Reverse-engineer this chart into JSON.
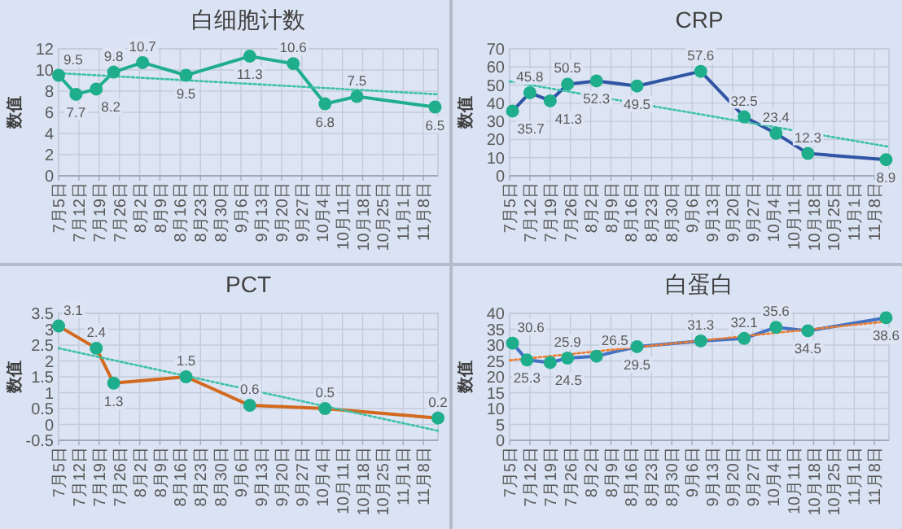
{
  "chart_data": [
    {
      "type": "line",
      "title": "白细胞计数",
      "ylabel": "数值",
      "grid": true,
      "marker": "circle",
      "line_style": "solid",
      "xlim": [
        "--07-05",
        "--11-13"
      ],
      "ylim": [
        0,
        12
      ],
      "yticks": [
        0,
        2,
        4,
        6,
        8,
        10,
        12
      ],
      "xticks": [
        {
          "value": "--07-05",
          "label": "7月5日"
        },
        {
          "value": "--07-12",
          "label": "7月12日"
        },
        {
          "value": "--07-19",
          "label": "7月19日"
        },
        {
          "value": "--07-26",
          "label": "7月26日"
        },
        {
          "value": "--08-02",
          "label": "8月2日"
        },
        {
          "value": "--08-09",
          "label": "8月9日"
        },
        {
          "value": "--08-16",
          "label": "8月16日"
        },
        {
          "value": "--08-23",
          "label": "8月23日"
        },
        {
          "value": "--08-30",
          "label": "8月30日"
        },
        {
          "value": "--09-06",
          "label": "9月6日"
        },
        {
          "value": "--09-13",
          "label": "9月13日"
        },
        {
          "value": "--09-20",
          "label": "9月20日"
        },
        {
          "value": "--09-27",
          "label": "9月27日"
        },
        {
          "value": "--10-04",
          "label": "10月4日"
        },
        {
          "value": "--10-11",
          "label": "10月11日"
        },
        {
          "value": "--10-18",
          "label": "10月18日"
        },
        {
          "value": "--10-25",
          "label": "10月25日"
        },
        {
          "value": "--11-01",
          "label": "11月1日"
        },
        {
          "value": "--11-08",
          "label": "11月8日"
        }
      ],
      "series": [
        {
          "color": "#1fae8c",
          "colors": [
            "#1fae8c",
            "#1fae8c",
            "#1fae8c",
            "#1fae8c",
            "#1fae8c",
            "#1fae8c",
            "#1fae8c",
            "#1fae8c",
            "#1fae8c",
            "#1fae8c",
            "#1fae8c"
          ],
          "x": [
            "--07-05",
            "--07-11",
            "--07-18",
            "--07-24",
            "--08-03",
            "--08-18",
            "--09-09",
            "--09-24",
            "--10-05",
            "--10-16",
            "--11-12"
          ],
          "values": [
            9.5,
            7.7,
            8.2,
            9.8,
            10.7,
            9.5,
            11.3,
            10.6,
            6.8,
            7.5,
            6.5
          ],
          "value_labels": [
            "9.5",
            "7.7",
            "8.2",
            "9.8",
            "10.7",
            "9.5",
            "11.3",
            "10.6",
            "6.8",
            "7.5",
            "6.5"
          ]
        },
        {
          "type": "line",
          "color": "#3cc0a8",
          "line_style": "dotted",
          "marker": "none",
          "x": [
            "--07-05",
            "--11-13"
          ],
          "values": [
            9.7,
            7.7
          ]
        }
      ]
    },
    {
      "type": "line",
      "title": "CRP",
      "ylabel": "数值",
      "grid": true,
      "marker": "circle",
      "line_style": "solid",
      "xlim": [
        "--07-05",
        "--11-13"
      ],
      "ylim": [
        0,
        70
      ],
      "yticks": [
        0,
        10,
        20,
        30,
        40,
        50,
        60,
        70
      ],
      "xticks": [
        {
          "value": "--07-05",
          "label": "7月5日"
        },
        {
          "value": "--07-12",
          "label": "7月12日"
        },
        {
          "value": "--07-19",
          "label": "7月19日"
        },
        {
          "value": "--07-26",
          "label": "7月26日"
        },
        {
          "value": "--08-02",
          "label": "8月2日"
        },
        {
          "value": "--08-09",
          "label": "8月9日"
        },
        {
          "value": "--08-16",
          "label": "8月16日"
        },
        {
          "value": "--08-23",
          "label": "8月23日"
        },
        {
          "value": "--08-30",
          "label": "8月30日"
        },
        {
          "value": "--09-06",
          "label": "9月6日"
        },
        {
          "value": "--09-13",
          "label": "9月13日"
        },
        {
          "value": "--09-20",
          "label": "9月20日"
        },
        {
          "value": "--09-27",
          "label": "9月27日"
        },
        {
          "value": "--10-04",
          "label": "10月4日"
        },
        {
          "value": "--10-11",
          "label": "10月11日"
        },
        {
          "value": "--10-18",
          "label": "10月18日"
        },
        {
          "value": "--10-25",
          "label": "10月25日"
        },
        {
          "value": "--11-01",
          "label": "11月1日"
        },
        {
          "value": "--11-08",
          "label": "11月8日"
        }
      ],
      "series": [
        {
          "color": "#2f55a4",
          "colors": [
            "#1fae8c",
            "#1fae8c",
            "#1fae8c",
            "#1fae8c",
            "#1fae8c",
            "#1fae8c",
            "#1fae8c",
            "#1fae8c",
            "#1fae8c",
            "#1fae8c",
            "#1fae8c"
          ],
          "x": [
            "--07-06",
            "--07-12",
            "--07-19",
            "--07-25",
            "--08-04",
            "--08-18",
            "--09-09",
            "--09-24",
            "--10-05",
            "--10-16",
            "--11-12"
          ],
          "values": [
            35.7,
            45.8,
            41.3,
            50.5,
            52.3,
            49.5,
            57.6,
            32.5,
            23.4,
            12.3,
            8.9
          ],
          "value_labels": [
            "35.7",
            "45.8",
            "41.3",
            "50.5",
            "52.3",
            "49.5",
            "57.6",
            "32.5",
            "23.4",
            "12.3",
            "8.9"
          ]
        },
        {
          "type": "line",
          "color": "#3cc0a8",
          "line_style": "dotted",
          "marker": "none",
          "x": [
            "--07-05",
            "--11-13"
          ],
          "values": [
            52,
            16
          ]
        }
      ]
    },
    {
      "type": "line",
      "title": "PCT",
      "ylabel": "数值",
      "grid": true,
      "marker": "circle",
      "line_style": "solid",
      "xlim": [
        "--07-05",
        "--11-13"
      ],
      "ylim": [
        -0.5,
        3.5
      ],
      "yticks": [
        -0.5,
        0,
        0.5,
        1,
        1.5,
        2,
        2.5,
        3,
        3.5
      ],
      "xticks": [
        {
          "value": "--07-05",
          "label": "7月5日"
        },
        {
          "value": "--07-12",
          "label": "7月12日"
        },
        {
          "value": "--07-19",
          "label": "7月19日"
        },
        {
          "value": "--07-26",
          "label": "7月26日"
        },
        {
          "value": "--08-02",
          "label": "8月2日"
        },
        {
          "value": "--08-09",
          "label": "8月9日"
        },
        {
          "value": "--08-16",
          "label": "8月16日"
        },
        {
          "value": "--08-23",
          "label": "8月23日"
        },
        {
          "value": "--08-30",
          "label": "8月30日"
        },
        {
          "value": "--09-06",
          "label": "9月6日"
        },
        {
          "value": "--09-13",
          "label": "9月13日"
        },
        {
          "value": "--09-20",
          "label": "9月20日"
        },
        {
          "value": "--09-27",
          "label": "9月27日"
        },
        {
          "value": "--10-04",
          "label": "10月4日"
        },
        {
          "value": "--10-11",
          "label": "10月11日"
        },
        {
          "value": "--10-18",
          "label": "10月18日"
        },
        {
          "value": "--10-25",
          "label": "10月25日"
        },
        {
          "value": "--11-01",
          "label": "11月1日"
        },
        {
          "value": "--11-08",
          "label": "11月8日"
        }
      ],
      "series": [
        {
          "color": "#d2691e",
          "colors": [
            "#1fae8c",
            "#1fae8c",
            "#1fae8c",
            "#1fae8c",
            "#1fae8c",
            "#1fae8c",
            "#1fae8c"
          ],
          "x": [
            "--07-05",
            "--07-18",
            "--07-24",
            "--08-18",
            "--09-09",
            "--10-05",
            "--11-13"
          ],
          "values": [
            3.1,
            2.4,
            1.3,
            1.5,
            0.6,
            0.5,
            0.2
          ],
          "value_labels": [
            "3.1",
            "2.4",
            "1.3",
            "1.5",
            "0.6",
            "0.5",
            "0.2"
          ]
        },
        {
          "type": "line",
          "color": "#3cc0a8",
          "line_style": "dotted",
          "marker": "none",
          "x": [
            "--07-05",
            "--11-13"
          ],
          "values": [
            2.4,
            -0.2
          ]
        }
      ]
    },
    {
      "type": "line",
      "title": "白蛋白",
      "ylabel": "数值",
      "grid": true,
      "marker": "circle",
      "line_style": "solid",
      "xlim": [
        "--07-05",
        "--11-13"
      ],
      "ylim": [
        0,
        40
      ],
      "yticks": [
        0,
        5,
        10,
        15,
        20,
        25,
        30,
        35,
        40
      ],
      "xticks": [
        {
          "value": "--07-05",
          "label": "7月5日"
        },
        {
          "value": "--07-12",
          "label": "7月12日"
        },
        {
          "value": "--07-19",
          "label": "7月19日"
        },
        {
          "value": "--07-26",
          "label": "7月26日"
        },
        {
          "value": "--08-02",
          "label": "8月2日"
        },
        {
          "value": "--08-09",
          "label": "8月9日"
        },
        {
          "value": "--08-16",
          "label": "8月16日"
        },
        {
          "value": "--08-23",
          "label": "8月23日"
        },
        {
          "value": "--08-30",
          "label": "8月30日"
        },
        {
          "value": "--09-06",
          "label": "9月6日"
        },
        {
          "value": "--09-13",
          "label": "9月13日"
        },
        {
          "value": "--09-20",
          "label": "9月20日"
        },
        {
          "value": "--09-27",
          "label": "9月27日"
        },
        {
          "value": "--10-04",
          "label": "10月4日"
        },
        {
          "value": "--10-11",
          "label": "10月11日"
        },
        {
          "value": "--10-18",
          "label": "10月18日"
        },
        {
          "value": "--10-25",
          "label": "10月25日"
        },
        {
          "value": "--11-01",
          "label": "11月1日"
        },
        {
          "value": "--11-08",
          "label": "11月8日"
        }
      ],
      "series": [
        {
          "color": "#4472c4",
          "colors": [
            "#1fae8c",
            "#1fae8c",
            "#1fae8c",
            "#1fae8c",
            "#1fae8c",
            "#1fae8c",
            "#1fae8c",
            "#1fae8c",
            "#1fae8c",
            "#1fae8c",
            "#1fae8c"
          ],
          "x": [
            "--07-06",
            "--07-11",
            "--07-19",
            "--07-25",
            "--08-04",
            "--08-18",
            "--09-09",
            "--09-24",
            "--10-05",
            "--10-16",
            "--11-12"
          ],
          "values": [
            30.6,
            25.3,
            24.5,
            25.9,
            26.5,
            29.5,
            31.3,
            32.1,
            35.6,
            34.5,
            38.6
          ],
          "value_labels": [
            "30.6",
            "25.3",
            "24.5",
            "25.9",
            "26.5",
            "29.5",
            "31.3",
            "32.1",
            "35.6",
            "34.5",
            "38.6"
          ]
        },
        {
          "type": "line",
          "color": "#ed7d31",
          "line_style": "dotted",
          "marker": "none",
          "x": [
            "--07-05",
            "--11-13"
          ],
          "values": [
            25.2,
            37.5
          ]
        }
      ]
    }
  ]
}
